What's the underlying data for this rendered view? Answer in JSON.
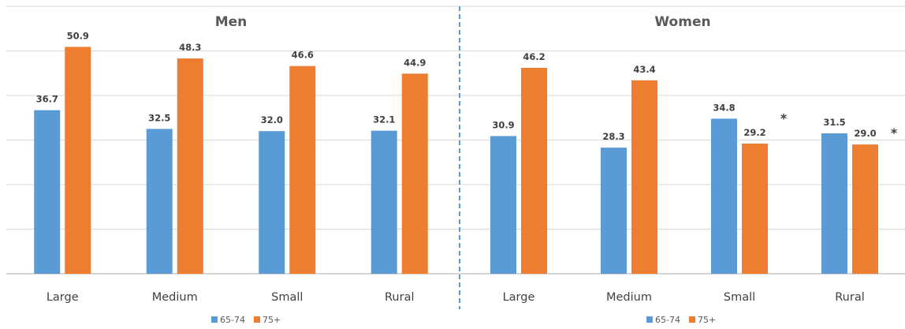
{
  "chart_data": [
    {
      "type": "bar",
      "title": "Men",
      "categories": [
        "Large",
        "Medium",
        "Small",
        "Rural"
      ],
      "series": [
        {
          "name": "65-74",
          "values": [
            36.7,
            32.5,
            32.0,
            32.1
          ],
          "color": "#5b9bd5"
        },
        {
          "name": "75+",
          "values": [
            50.9,
            48.3,
            46.6,
            44.9
          ],
          "color": "#ed7d31"
        }
      ],
      "markers": [],
      "ylim": [
        0,
        60
      ],
      "grid": true,
      "legend": "bottom"
    },
    {
      "type": "bar",
      "title": "Women",
      "categories": [
        "Large",
        "Medium",
        "Small",
        "Rural"
      ],
      "series": [
        {
          "name": "65-74",
          "values": [
            30.9,
            28.3,
            34.8,
            31.5
          ],
          "color": "#5b9bd5"
        },
        {
          "name": "75+",
          "values": [
            46.2,
            43.4,
            29.2,
            29.0
          ],
          "color": "#ed7d31"
        }
      ],
      "markers": [
        "",
        "",
        "*",
        "*"
      ],
      "ylim": [
        0,
        60
      ],
      "grid": true,
      "legend": "bottom"
    }
  ]
}
